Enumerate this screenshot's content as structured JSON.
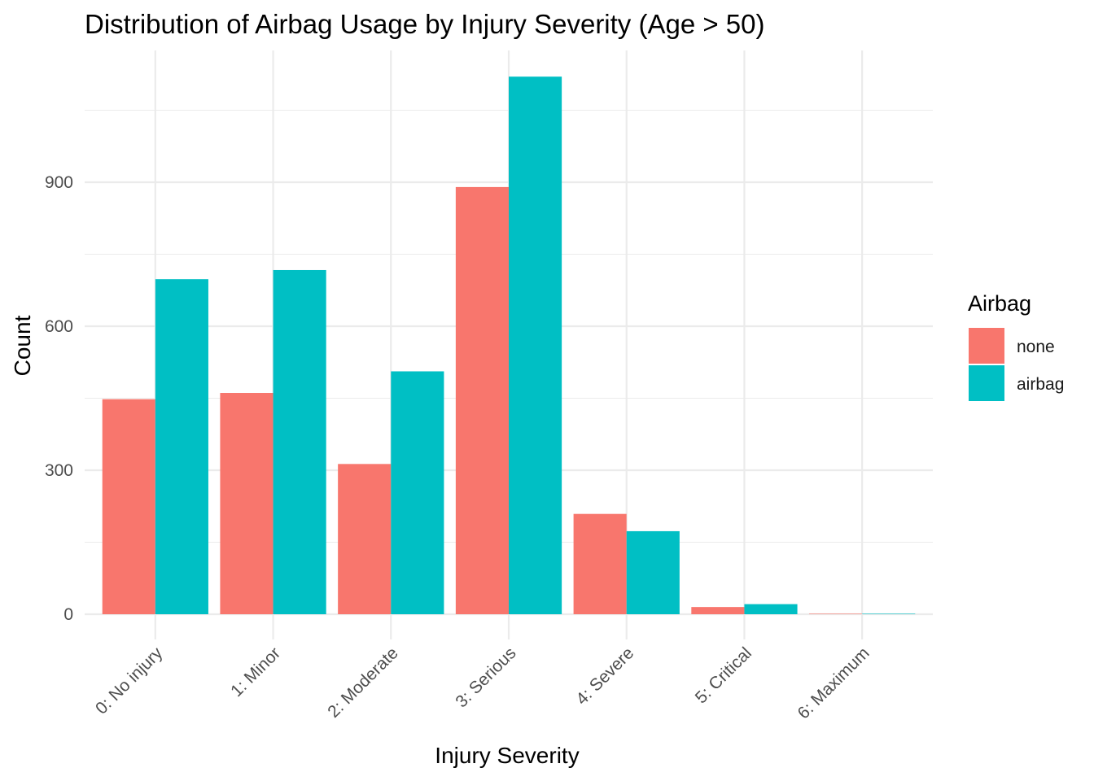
{
  "chart_data": {
    "type": "bar",
    "title": "Distribution of Airbag Usage by Injury Severity (Age > 50)",
    "xlabel": "Injury Severity",
    "ylabel": "Count",
    "categories": [
      "0: No injury",
      "1: Minor",
      "2: Moderate",
      "3: Serious",
      "4: Severe",
      "5: Critical",
      "6: Maximum"
    ],
    "series": [
      {
        "name": "none",
        "color": "#F8766D",
        "values": [
          448,
          461,
          313,
          890,
          209,
          15,
          1
        ]
      },
      {
        "name": "airbag",
        "color": "#00BFC4",
        "values": [
          698,
          717,
          506,
          1120,
          173,
          21,
          1
        ]
      }
    ],
    "ylim": [
      -50,
      1170
    ],
    "yticks": [
      0,
      300,
      600,
      900
    ],
    "grid": true,
    "legend": {
      "title": "Airbag",
      "position": "right"
    }
  }
}
